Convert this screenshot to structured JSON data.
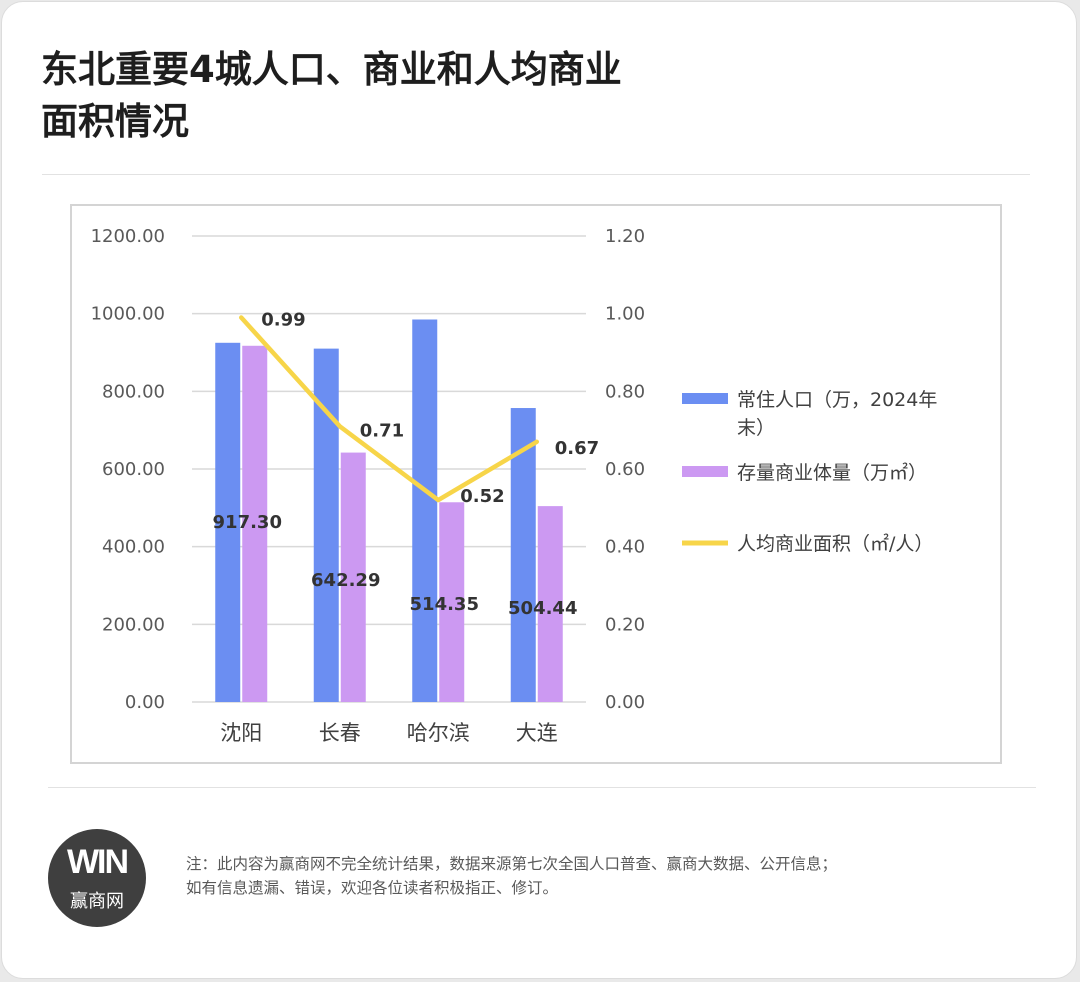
{
  "title_line1": "东北重要4城人口、商业和人均商业",
  "title_line2": "面积情况",
  "chart_data": {
    "type": "bar",
    "categories": [
      "沈阳",
      "长春",
      "哈尔滨",
      "大连"
    ],
    "series": [
      {
        "name": "常住人口（万，2024年末）",
        "type": "bar",
        "axis": "left",
        "color": "#6b8ef2",
        "values": [
          925,
          910,
          985,
          757
        ]
      },
      {
        "name": "存量商业体量（万㎡）",
        "type": "bar",
        "axis": "left",
        "color": "#cc99f2",
        "values": [
          917.3,
          642.29,
          514.35,
          504.44
        ],
        "labels": [
          "917.30",
          "642.29",
          "514.35",
          "504.44"
        ]
      },
      {
        "name": "人均商业面积（㎡/人）",
        "type": "line",
        "axis": "right",
        "color": "#f7d549",
        "values": [
          0.99,
          0.71,
          0.52,
          0.67
        ],
        "labels": [
          "0.99",
          "0.71",
          "0.52",
          "0.67"
        ]
      }
    ],
    "y_left": {
      "min": 0,
      "max": 1200,
      "ticks": [
        "0.00",
        "200.00",
        "400.00",
        "600.00",
        "800.00",
        "1000.00",
        "1200.00"
      ]
    },
    "y_right": {
      "min": 0,
      "max": 1.2,
      "ticks": [
        "0.00",
        "0.20",
        "0.40",
        "0.60",
        "0.80",
        "1.00",
        "1.20"
      ]
    },
    "legend_lines": [
      [
        "常住人口（万，2024年",
        "末）"
      ],
      [
        "存量商业体量（万㎡）"
      ],
      [
        "人均商业面积（㎡/人）"
      ]
    ],
    "grid": true,
    "legend_position": "right"
  },
  "logo": {
    "mark": "WIN",
    "text": "赢商网"
  },
  "note_line1": "注：此内容为赢商网不完全统计结果，数据来源第七次全国人口普查、赢商大数据、公开信息；",
  "note_line2": "如有信息遗漏、错误，欢迎各位读者积极指正、修订。"
}
